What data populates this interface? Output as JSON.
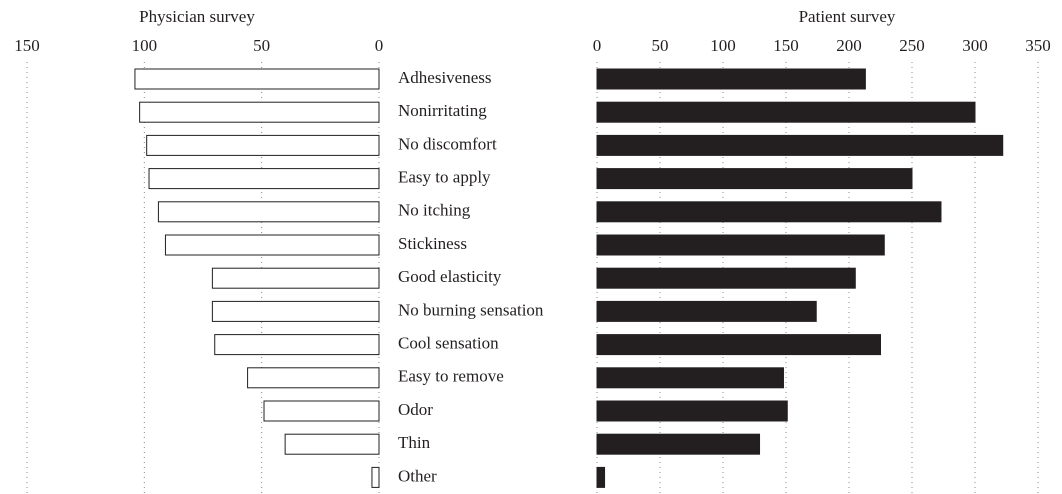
{
  "chart_data": [
    {
      "type": "bar",
      "title": "Physician survey",
      "categories": [
        "Adhesiveness",
        "Nonirritating",
        "No discomfort",
        "Easy to apply",
        "No itching",
        "Stickiness",
        "Good elasticity",
        "No burning sensation",
        "Cool sensation",
        "Easy to remove",
        "Odor",
        "Thin",
        "Other"
      ],
      "values": [
        104,
        102,
        99,
        98,
        94,
        91,
        71,
        71,
        70,
        56,
        49,
        40,
        3
      ],
      "color": "#ffffff",
      "xlim": [
        150,
        0
      ],
      "xticks": [
        150,
        100,
        50,
        0
      ],
      "grid": true
    },
    {
      "type": "bar",
      "title": "Patient survey",
      "values": [
        213,
        300,
        322,
        250,
        273,
        228,
        205,
        174,
        225,
        148,
        151,
        129,
        6
      ],
      "color": "#231f20",
      "xlim": [
        0,
        350
      ],
      "xticks": [
        0,
        50,
        100,
        150,
        200,
        250,
        300,
        350
      ],
      "grid": true
    }
  ]
}
